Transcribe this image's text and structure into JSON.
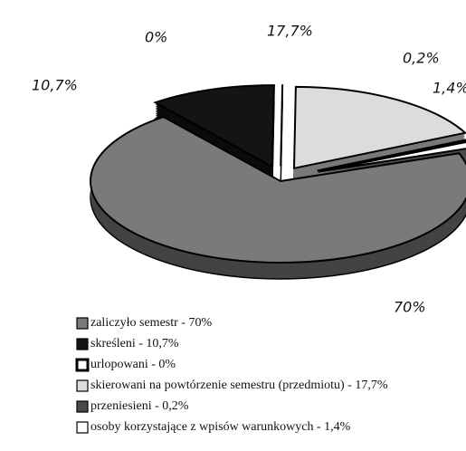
{
  "chart_data": {
    "type": "pie",
    "categories": [
      "zaliczyło semestr - 70%",
      "skreśleni - 10,7%",
      "urlopowani - 0%",
      "skierowani na powtórzenie semestru (przedmiotu) - 17,7%",
      "przeniesieni - 0,2%",
      "osoby korzystające z wpisów warunkowych - 1,4%"
    ],
    "values": [
      70,
      10.7,
      0,
      17.7,
      0.2,
      1.4
    ],
    "value_labels": [
      "70%",
      "10,7%",
      "0%",
      "17,7%",
      "0,2%",
      "1,4%"
    ],
    "colors": [
      "#7a7a7a",
      "#141414",
      "#ffffff",
      "#dcdcdc",
      "#4a4a4a",
      "#ffffff"
    ]
  }
}
